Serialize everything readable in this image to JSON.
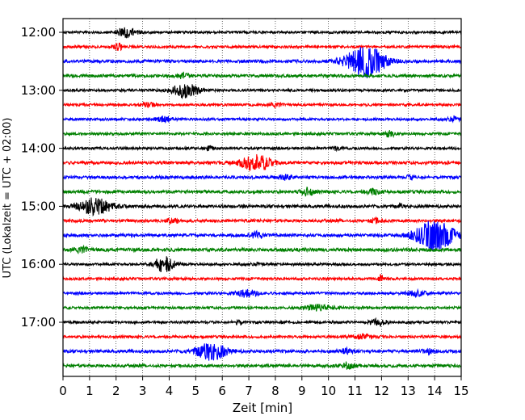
{
  "chart_data": {
    "type": "line",
    "title": "",
    "xlabel": "Zeit  [min]",
    "ylabel": "UTC (Lokalzeit = UTC + 02:00)",
    "xlim": [
      0,
      15
    ],
    "x_ticks": [
      0,
      1,
      2,
      3,
      4,
      5,
      6,
      7,
      8,
      9,
      10,
      11,
      12,
      13,
      14,
      15
    ],
    "y_ticks": [
      "12:00",
      "13:00",
      "14:00",
      "15:00",
      "16:00",
      "17:00"
    ],
    "trace_interval_minutes": 15,
    "grid": "vertical dotted at each minute",
    "colors": [
      "#000000",
      "#ff0000",
      "#0000ff",
      "#008000"
    ],
    "traces": [
      {
        "start": "12:00",
        "color": "#000000",
        "noise": 0.25,
        "events": [
          {
            "t": 2.4,
            "amp": 1.0,
            "dur": 0.8
          }
        ]
      },
      {
        "start": "12:15",
        "color": "#ff0000",
        "noise": 0.25,
        "events": [
          {
            "t": 2.1,
            "amp": 0.6,
            "dur": 0.4
          }
        ]
      },
      {
        "start": "12:30",
        "color": "#0000ff",
        "noise": 0.3,
        "events": [
          {
            "t": 11.4,
            "amp": 3.2,
            "dur": 1.6
          }
        ]
      },
      {
        "start": "12:45",
        "color": "#008000",
        "noise": 0.3,
        "events": [
          {
            "t": 4.5,
            "amp": 0.6,
            "dur": 0.5
          }
        ]
      },
      {
        "start": "13:00",
        "color": "#000000",
        "noise": 0.25,
        "events": [
          {
            "t": 4.6,
            "amp": 1.4,
            "dur": 1.1
          }
        ]
      },
      {
        "start": "13:15",
        "color": "#ff0000",
        "noise": 0.25,
        "events": [
          {
            "t": 3.2,
            "amp": 0.5,
            "dur": 0.5
          },
          {
            "t": 8.0,
            "amp": 0.4,
            "dur": 0.5
          }
        ]
      },
      {
        "start": "13:30",
        "color": "#0000ff",
        "noise": 0.25,
        "events": [
          {
            "t": 3.8,
            "amp": 0.7,
            "dur": 0.6
          },
          {
            "t": 14.7,
            "amp": 0.6,
            "dur": 0.4
          }
        ]
      },
      {
        "start": "13:45",
        "color": "#008000",
        "noise": 0.25,
        "events": [
          {
            "t": 12.3,
            "amp": 0.6,
            "dur": 0.4
          }
        ]
      },
      {
        "start": "14:00",
        "color": "#000000",
        "noise": 0.25,
        "events": [
          {
            "t": 5.5,
            "amp": 0.4,
            "dur": 0.4
          },
          {
            "t": 10.3,
            "amp": 0.4,
            "dur": 0.3
          }
        ]
      },
      {
        "start": "14:15",
        "color": "#ff0000",
        "noise": 0.3,
        "events": [
          {
            "t": 7.3,
            "amp": 1.6,
            "dur": 1.3
          }
        ]
      },
      {
        "start": "14:30",
        "color": "#0000ff",
        "noise": 0.3,
        "events": [
          {
            "t": 8.4,
            "amp": 0.5,
            "dur": 0.5
          },
          {
            "t": 13.1,
            "amp": 0.4,
            "dur": 0.3
          }
        ]
      },
      {
        "start": "14:45",
        "color": "#008000",
        "noise": 0.3,
        "events": [
          {
            "t": 9.2,
            "amp": 0.7,
            "dur": 0.6
          },
          {
            "t": 11.7,
            "amp": 0.5,
            "dur": 0.5
          }
        ]
      },
      {
        "start": "15:00",
        "color": "#000000",
        "noise": 0.3,
        "events": [
          {
            "t": 1.2,
            "amp": 1.6,
            "dur": 1.4
          },
          {
            "t": 12.7,
            "amp": 0.9,
            "dur": 0.1
          }
        ]
      },
      {
        "start": "15:15",
        "color": "#ff0000",
        "noise": 0.3,
        "events": [
          {
            "t": 4.1,
            "amp": 0.5,
            "dur": 0.5
          },
          {
            "t": 11.8,
            "amp": 0.4,
            "dur": 0.5
          }
        ]
      },
      {
        "start": "15:30",
        "color": "#0000ff",
        "noise": 0.3,
        "events": [
          {
            "t": 14.0,
            "amp": 3.0,
            "dur": 1.6
          },
          {
            "t": 7.3,
            "amp": 0.6,
            "dur": 0.5
          }
        ]
      },
      {
        "start": "15:45",
        "color": "#008000",
        "noise": 0.35,
        "events": [
          {
            "t": 0.7,
            "amp": 0.5,
            "dur": 0.5
          }
        ]
      },
      {
        "start": "16:00",
        "color": "#000000",
        "noise": 0.25,
        "events": [
          {
            "t": 3.8,
            "amp": 1.5,
            "dur": 0.9
          },
          {
            "t": 7.3,
            "amp": 0.3,
            "dur": 0.4
          }
        ]
      },
      {
        "start": "16:15",
        "color": "#ff0000",
        "noise": 0.25,
        "events": [
          {
            "t": 12.0,
            "amp": 0.9,
            "dur": 0.2
          }
        ]
      },
      {
        "start": "16:30",
        "color": "#0000ff",
        "noise": 0.25,
        "events": [
          {
            "t": 6.9,
            "amp": 0.7,
            "dur": 1.0
          },
          {
            "t": 13.3,
            "amp": 0.5,
            "dur": 0.8
          }
        ]
      },
      {
        "start": "16:45",
        "color": "#008000",
        "noise": 0.25,
        "events": [
          {
            "t": 9.6,
            "amp": 0.6,
            "dur": 1.2
          }
        ]
      },
      {
        "start": "17:00",
        "color": "#000000",
        "noise": 0.25,
        "events": [
          {
            "t": 11.9,
            "amp": 0.6,
            "dur": 0.7
          },
          {
            "t": 6.6,
            "amp": 0.4,
            "dur": 0.4
          }
        ]
      },
      {
        "start": "17:15",
        "color": "#ff0000",
        "noise": 0.25,
        "events": [
          {
            "t": 11.3,
            "amp": 0.4,
            "dur": 1.0
          }
        ]
      },
      {
        "start": "17:30",
        "color": "#0000ff",
        "noise": 0.3,
        "events": [
          {
            "t": 5.6,
            "amp": 1.7,
            "dur": 1.3
          },
          {
            "t": 10.7,
            "amp": 0.5,
            "dur": 0.6
          },
          {
            "t": 13.8,
            "amp": 0.4,
            "dur": 0.6
          }
        ]
      },
      {
        "start": "17:45",
        "color": "#008000",
        "noise": 0.3,
        "events": [
          {
            "t": 10.7,
            "amp": 0.5,
            "dur": 0.7
          }
        ]
      }
    ]
  }
}
